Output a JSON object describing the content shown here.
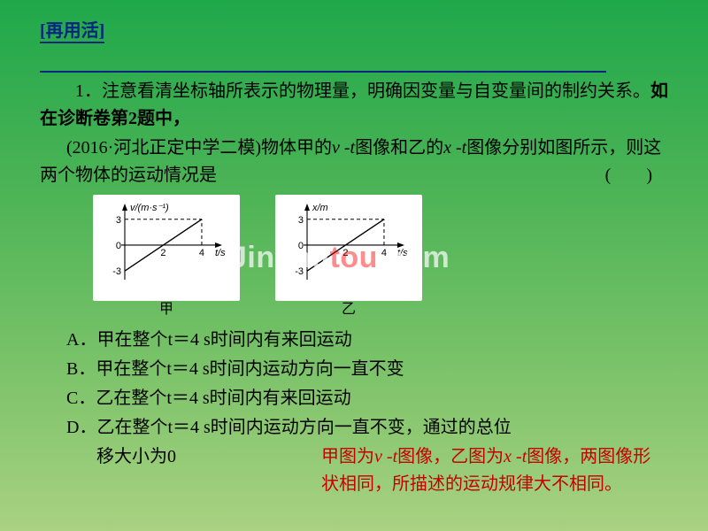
{
  "header": "[再用活]",
  "paragraph1_a": "1．注意看清坐标轴所表示的物理量，明确因变量与自变量间的制约关系。",
  "paragraph1_b": "如在诊断卷第2题中，",
  "paragraph2_a": "(2016·河北正定中学二模)物体甲的",
  "paragraph2_b": "图像和乙的",
  "paragraph2_c": "图像分别如图所示，则这两个物体的运动情况是",
  "paren": "(　　)",
  "sym": {
    "v": "v",
    "x": "x",
    "t": "t",
    "dash": " -"
  },
  "options": {
    "A": "A．甲在整个t＝4 s时间内有来回运动",
    "B": "B．甲在整个t＝4 s时间内运动方向一直不变",
    "C": "C．乙在整个t＝4 s时间内有来回运动",
    "D1": "D．乙在整个t＝4 s时间内运动方向一直不变，通过的总位",
    "D2": "移大小为0"
  },
  "note1": "甲图为v -t图像，乙图为x -t图像，两图像形",
  "note2": "状相同，所描述的运动规律大不相同。",
  "watermark": {
    "a": "Jinchu",
    "b": "tou",
    "c": ".com"
  },
  "chartA": {
    "type": "line",
    "x": [
      0,
      2,
      4
    ],
    "y": [
      -3,
      0,
      3
    ],
    "xlim": [
      0,
      4.6
    ],
    "ylim": [
      -3.6,
      3.8
    ],
    "xticks": [
      2,
      4
    ],
    "yticks": [
      -3,
      0,
      3
    ],
    "xlabel": "t/s",
    "ylabel": "v/(m·s⁻¹)",
    "colors": {
      "axis": "#000000",
      "line": "#000000",
      "bg": "#ffffff",
      "dash": "#000000"
    },
    "line_width": 1.4,
    "axis_width": 1.1,
    "dash": "4,3",
    "caption": "甲",
    "font_size": 11
  },
  "chartB": {
    "type": "line",
    "x": [
      0,
      2,
      4
    ],
    "y": [
      -3,
      0,
      3
    ],
    "xlim": [
      0,
      4.6
    ],
    "ylim": [
      -3.6,
      3.8
    ],
    "xticks": [
      2,
      4
    ],
    "yticks": [
      -3,
      0,
      3
    ],
    "xlabel": "t/s",
    "ylabel": "x/m",
    "colors": {
      "axis": "#000000",
      "line": "#000000",
      "bg": "#ffffff",
      "dash": "#000000"
    },
    "line_width": 1.4,
    "axis_width": 1.1,
    "dash": "4,3",
    "caption": "乙",
    "font_size": 11
  },
  "svg": {
    "w": 150,
    "h": 100
  }
}
